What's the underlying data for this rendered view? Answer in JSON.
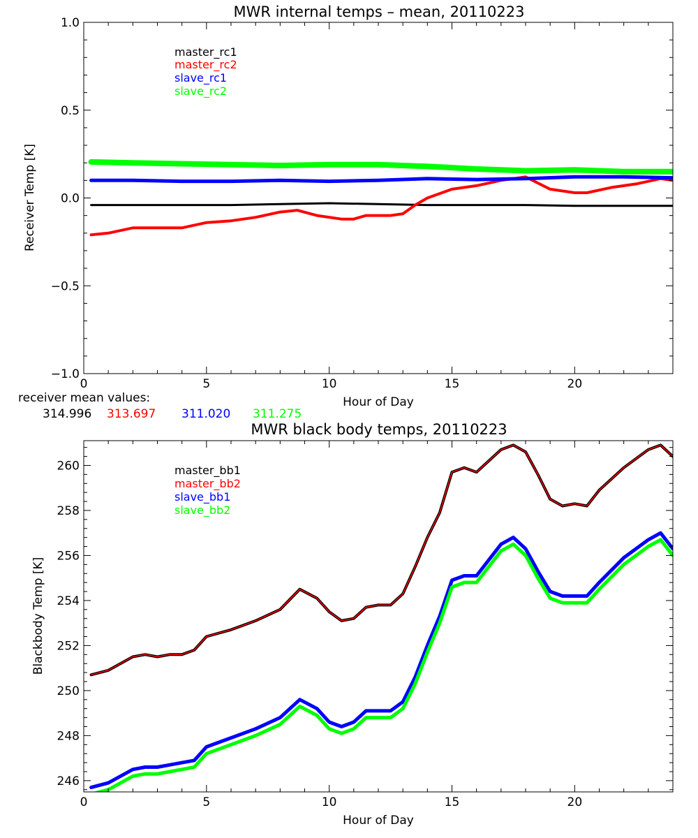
{
  "colors": {
    "black": "#000000",
    "red": "#ff0000",
    "blue": "#0000ff",
    "green": "#00ff00"
  },
  "chart_data": [
    {
      "type": "line",
      "title": "MWR internal temps – mean, 20110223",
      "xlabel": "Hour of Day",
      "ylabel": "Receiver Temp [K]",
      "xlim": [
        0,
        24
      ],
      "ylim": [
        -1.0,
        1.0
      ],
      "x_ticks": [
        0,
        5,
        10,
        15,
        20
      ],
      "x_tick_labels": [
        "0",
        "5",
        "10",
        "15",
        "20"
      ],
      "y_ticks": [
        -1.0,
        -0.5,
        0.0,
        0.5,
        1.0
      ],
      "y_tick_labels": [
        "−1.0",
        "−0.5",
        "0.0",
        "0.5",
        "1.0"
      ],
      "legend_position": "top-left",
      "legend": [
        "master_rc1",
        "master_rc2",
        "slave_rc1",
        "slave_rc2"
      ],
      "series": [
        {
          "name": "master_rc1",
          "color": "#000000",
          "x": [
            0.3,
            2,
            4,
            6,
            8,
            10,
            12,
            14,
            16,
            18,
            20,
            22,
            24
          ],
          "values": [
            -0.04,
            -0.04,
            -0.04,
            -0.04,
            -0.035,
            -0.03,
            -0.035,
            -0.04,
            -0.04,
            -0.04,
            -0.045,
            -0.045,
            -0.045
          ]
        },
        {
          "name": "master_rc2",
          "color": "#ff0000",
          "x": [
            0.3,
            1,
            2,
            3,
            4,
            5,
            6,
            7,
            8,
            8.7,
            9.5,
            10.5,
            11,
            11.5,
            12.5,
            13,
            13.5,
            14,
            15,
            16,
            17,
            18,
            19,
            20,
            20.5,
            21.5,
            22.5,
            23.5,
            24
          ],
          "values": [
            -0.21,
            -0.2,
            -0.17,
            -0.17,
            -0.17,
            -0.14,
            -0.13,
            -0.11,
            -0.08,
            -0.07,
            -0.1,
            -0.12,
            -0.12,
            -0.1,
            -0.1,
            -0.09,
            -0.04,
            0.0,
            0.05,
            0.07,
            0.1,
            0.12,
            0.05,
            0.03,
            0.03,
            0.06,
            0.08,
            0.11,
            0.1
          ]
        },
        {
          "name": "slave_rc1",
          "color": "#0000ff",
          "x": [
            0.3,
            2,
            4,
            6,
            8,
            10,
            12,
            14,
            16,
            18,
            20,
            22,
            24
          ],
          "values": [
            0.1,
            0.1,
            0.095,
            0.095,
            0.1,
            0.095,
            0.1,
            0.11,
            0.105,
            0.11,
            0.12,
            0.12,
            0.115
          ]
        },
        {
          "name": "slave_rc2",
          "color": "#00ff00",
          "x": [
            0.3,
            2,
            4,
            6,
            8,
            10,
            12,
            14,
            16,
            18,
            20,
            22,
            24
          ],
          "values": [
            0.205,
            0.2,
            0.195,
            0.19,
            0.185,
            0.19,
            0.19,
            0.18,
            0.165,
            0.155,
            0.16,
            0.15,
            0.15
          ]
        }
      ],
      "mean_values": {
        "label": "receiver mean values:",
        "items": [
          {
            "value": "314.996",
            "color": "#000000"
          },
          {
            "value": "313.697",
            "color": "#ff0000"
          },
          {
            "value": "311.020",
            "color": "#0000ff"
          },
          {
            "value": "311.275",
            "color": "#00ff00"
          }
        ]
      }
    },
    {
      "type": "line",
      "title": "MWR black body temps, 20110223",
      "xlabel": "Hour of Day",
      "ylabel": "Blackbody Temp [K]",
      "xlim": [
        0,
        24
      ],
      "ylim": [
        245.5,
        261.1
      ],
      "x_ticks": [
        0,
        5,
        10,
        15,
        20
      ],
      "x_tick_labels": [
        "0",
        "5",
        "10",
        "15",
        "20"
      ],
      "y_ticks": [
        246,
        248,
        250,
        252,
        254,
        256,
        258,
        260
      ],
      "y_tick_labels": [
        "246",
        "248",
        "250",
        "252",
        "254",
        "256",
        "258",
        "260"
      ],
      "legend_position": "top-left",
      "legend": [
        "master_bb1",
        "master_bb2",
        "slave_bb1",
        "slave_bb2"
      ],
      "series": [
        {
          "name": "master_bb1",
          "color": "#000000",
          "x": [
            0.3,
            1,
            2,
            2.5,
            3,
            3.5,
            4,
            4.5,
            5,
            6,
            7,
            8,
            8.8,
            9.5,
            10,
            10.5,
            11,
            11.5,
            12,
            12.5,
            13,
            13.5,
            14,
            14.5,
            15,
            15.5,
            16,
            17,
            17.5,
            18,
            18.5,
            19,
            19.5,
            20,
            20.5,
            21,
            22,
            23,
            23.5,
            24
          ],
          "values": [
            250.7,
            250.9,
            251.5,
            251.6,
            251.5,
            251.6,
            251.6,
            251.8,
            252.4,
            252.7,
            253.1,
            253.6,
            254.5,
            254.1,
            253.5,
            253.1,
            253.2,
            253.7,
            253.8,
            253.8,
            254.3,
            255.5,
            256.8,
            257.9,
            259.7,
            259.9,
            259.7,
            260.7,
            260.9,
            260.6,
            259.6,
            258.5,
            258.2,
            258.3,
            258.2,
            258.9,
            259.9,
            260.7,
            260.9,
            260.4
          ]
        },
        {
          "name": "master_bb2",
          "color": "#ff0000",
          "x": [
            0.3,
            1,
            2,
            2.5,
            3,
            3.5,
            4,
            4.5,
            5,
            6,
            7,
            8,
            8.8,
            9.5,
            10,
            10.5,
            11,
            11.5,
            12,
            12.5,
            13,
            13.5,
            14,
            14.5,
            15,
            15.5,
            16,
            17,
            17.5,
            18,
            18.5,
            19,
            19.5,
            20,
            20.5,
            21,
            22,
            23,
            23.5,
            24
          ],
          "values": [
            250.7,
            250.9,
            251.5,
            251.6,
            251.5,
            251.6,
            251.6,
            251.8,
            252.4,
            252.7,
            253.1,
            253.6,
            254.5,
            254.1,
            253.5,
            253.1,
            253.2,
            253.7,
            253.8,
            253.8,
            254.3,
            255.5,
            256.8,
            257.9,
            259.7,
            259.9,
            259.7,
            260.7,
            260.9,
            260.6,
            259.6,
            258.5,
            258.2,
            258.3,
            258.2,
            258.9,
            259.9,
            260.7,
            260.9,
            260.4
          ]
        },
        {
          "name": "slave_bb1",
          "color": "#0000ff",
          "x": [
            0.3,
            1,
            2,
            2.5,
            3,
            3.5,
            4,
            4.5,
            5,
            6,
            7,
            8,
            8.8,
            9.5,
            10,
            10.5,
            11,
            11.5,
            12,
            12.5,
            13,
            13.5,
            14,
            14.5,
            15,
            15.5,
            16,
            17,
            17.5,
            18,
            18.5,
            19,
            19.5,
            20,
            20.5,
            21,
            22,
            23,
            23.5,
            24
          ],
          "values": [
            245.7,
            245.9,
            246.5,
            246.6,
            246.6,
            246.7,
            246.8,
            246.9,
            247.5,
            247.9,
            248.3,
            248.8,
            249.6,
            249.2,
            248.6,
            248.4,
            248.6,
            249.1,
            249.1,
            249.1,
            249.5,
            250.6,
            252.0,
            253.3,
            254.9,
            255.1,
            255.1,
            256.5,
            256.8,
            256.3,
            255.3,
            254.4,
            254.2,
            254.2,
            254.2,
            254.8,
            255.9,
            256.7,
            257.0,
            256.3
          ]
        },
        {
          "name": "slave_bb2",
          "color": "#00ff00",
          "x": [
            0.3,
            1,
            2,
            2.5,
            3,
            3.5,
            4,
            4.5,
            5,
            6,
            7,
            8,
            8.8,
            9.5,
            10,
            10.5,
            11,
            11.5,
            12,
            12.5,
            13,
            13.5,
            14,
            14.5,
            15,
            15.5,
            16,
            17,
            17.5,
            18,
            18.5,
            19,
            19.5,
            20,
            20.5,
            21,
            22,
            23,
            23.5,
            24
          ],
          "values": [
            245.4,
            245.6,
            246.2,
            246.3,
            246.3,
            246.4,
            246.5,
            246.6,
            247.2,
            247.6,
            248.0,
            248.5,
            249.3,
            248.9,
            248.3,
            248.1,
            248.3,
            248.8,
            248.8,
            248.8,
            249.2,
            250.3,
            251.7,
            253.0,
            254.6,
            254.8,
            254.8,
            256.2,
            256.5,
            256.0,
            255.0,
            254.1,
            253.9,
            253.9,
            253.9,
            254.5,
            255.6,
            256.4,
            256.7,
            256.0
          ]
        }
      ]
    }
  ]
}
